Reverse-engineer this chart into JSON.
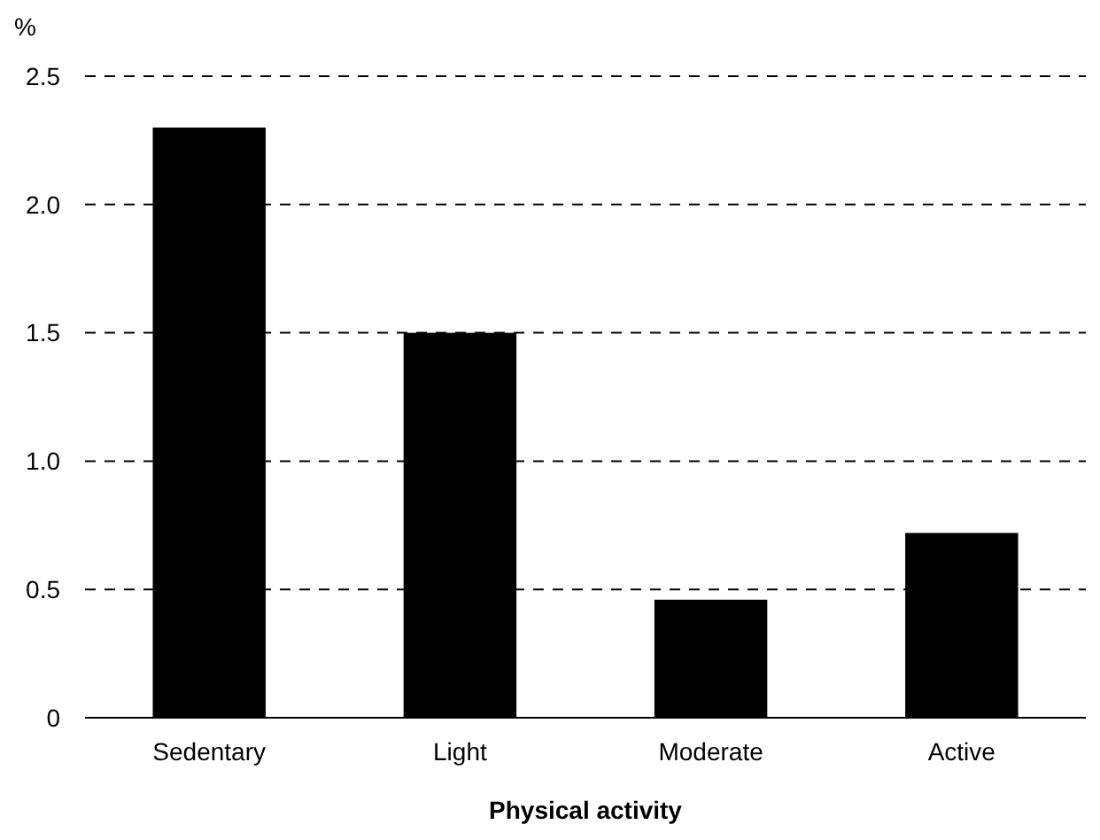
{
  "chart_data": {
    "type": "bar",
    "xlabel": "Physical activity",
    "ylabel": "%",
    "categories": [
      "Sedentary",
      "Light",
      "Moderate",
      "Active"
    ],
    "values": [
      2.3,
      1.5,
      0.46,
      0.72
    ],
    "color": "#000000",
    "ylim": [
      0,
      2.5
    ],
    "yticks": [
      0,
      {
        "value": 0.5,
        "label": "0.5"
      },
      {
        "value": 1,
        "label": "1.0"
      },
      {
        "value": 1.5,
        "label": "1.5"
      },
      {
        "value": 2,
        "label": "2.0"
      },
      {
        "value": 2.5,
        "label": "2.5"
      }
    ],
    "grid": "y",
    "line_style": "dashed"
  }
}
